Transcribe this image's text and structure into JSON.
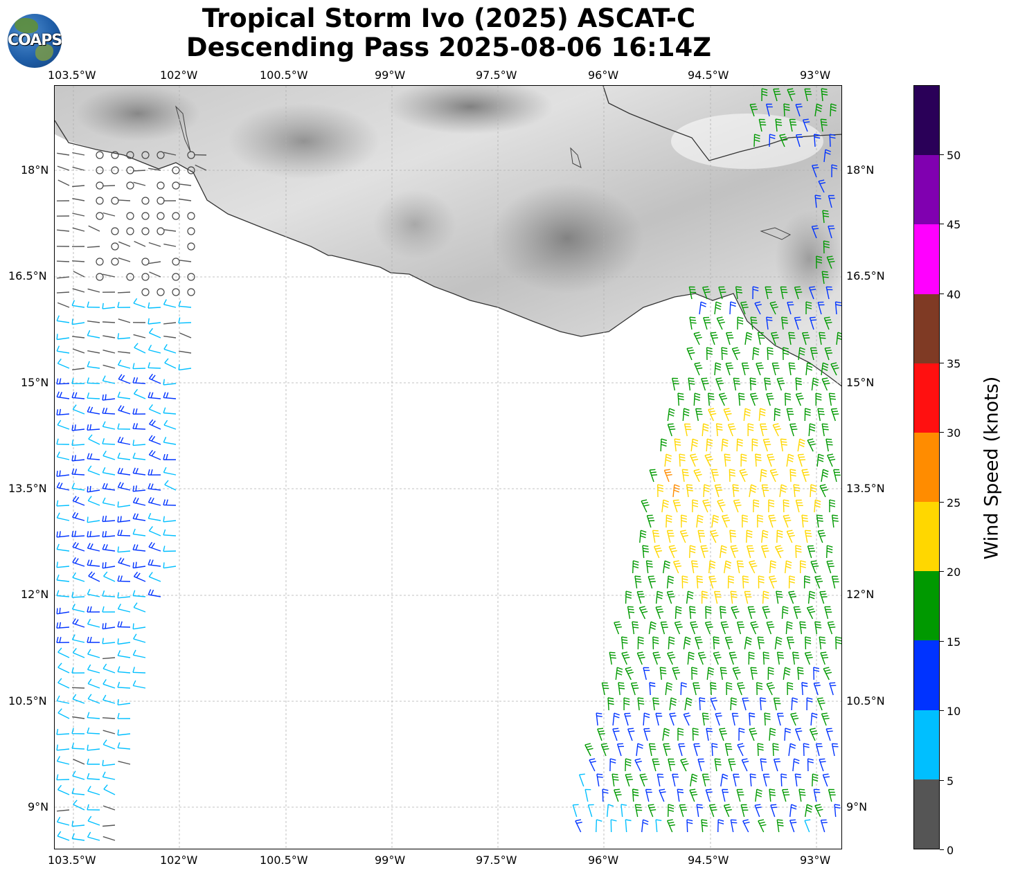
{
  "title": {
    "line1": "Tropical Storm Ivo (2025) ASCAT-C",
    "line2": "Descending Pass 2025-08-06 16:14Z"
  },
  "logo": {
    "text": "COAPS"
  },
  "map": {
    "lon_labels": [
      "103.5°W",
      "102°W",
      "100.5°W",
      "99°W",
      "97.5°W",
      "96°W",
      "94.5°W",
      "93°W"
    ],
    "lat_labels": [
      "18°N",
      "16.5°N",
      "15°N",
      "13.5°N",
      "12°N",
      "10.5°N",
      "9°N"
    ],
    "lon_range": [
      -103.88,
      -92.63
    ],
    "lat_range": [
      8.36,
      19.19
    ]
  },
  "colorbar": {
    "label": "Wind Speed (knots)",
    "ticks": [
      "0",
      "5",
      "10",
      "15",
      "20",
      "25",
      "30",
      "35",
      "40",
      "45",
      "50"
    ],
    "colors": [
      "#555555",
      "#00bfff",
      "#0033ff",
      "#009900",
      "#ffd700",
      "#ff8c00",
      "#ff1010",
      "#7f3a24",
      "#ff00ff",
      "#8000b0",
      "#2a0058"
    ]
  }
}
